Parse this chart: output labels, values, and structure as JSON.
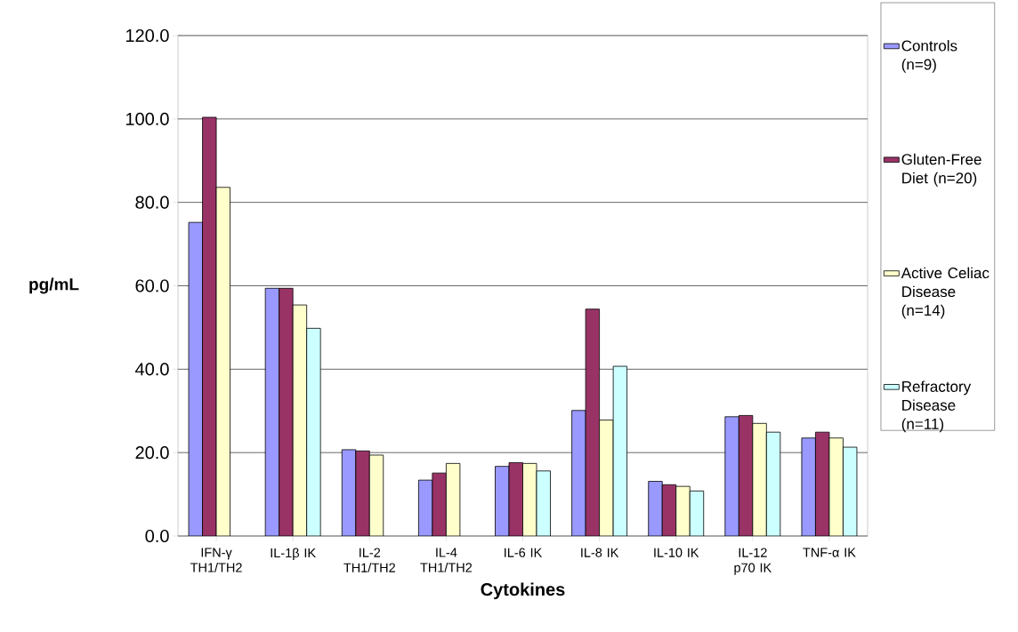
{
  "chart_data": {
    "type": "bar",
    "xlabel": "Cytokines",
    "ylabel": "pg/mL",
    "categories": [
      "IFN-γ TH1/TH2",
      "IL-1β IK",
      "IL-2 TH1/TH2",
      "IL-4 TH1/TH2",
      "IL-6 IK",
      "IL-8 IK",
      "IL-10 IK",
      "IL-12 p70 IK",
      "TNF-α IK"
    ],
    "series": [
      {
        "name": "Controls (n=9)",
        "color": "#9999ff",
        "values": [
          75.2,
          59.4,
          20.7,
          13.4,
          16.7,
          30.1,
          13.1,
          28.6,
          23.5
        ]
      },
      {
        "name": "Gluten-Free Diet (n=20)",
        "color": "#993366",
        "values": [
          100.4,
          59.4,
          20.4,
          15.1,
          17.6,
          54.4,
          12.3,
          28.9,
          24.9
        ]
      },
      {
        "name": "Active Celiac Disease (n=14)",
        "color": "#ffffcc",
        "values": [
          83.6,
          55.4,
          19.4,
          17.4,
          17.4,
          27.8,
          11.9,
          27.0,
          23.5
        ]
      },
      {
        "name": "Refractory Disease (n=11)",
        "color": "#ccffff",
        "values": [
          null,
          49.8,
          null,
          null,
          15.6,
          40.7,
          10.8,
          24.9,
          21.3
        ]
      }
    ],
    "ylim": [
      0,
      120
    ],
    "yticks": [
      {
        "value": 0,
        "label": "0.0"
      },
      {
        "value": 20,
        "label": "20.0"
      },
      {
        "value": 40,
        "label": "40.0"
      },
      {
        "value": 60,
        "label": "60.0"
      },
      {
        "value": 80,
        "label": "80.0"
      },
      {
        "value": 100,
        "label": "100.0"
      },
      {
        "value": 120,
        "label": "120.0"
      }
    ],
    "grid": "y",
    "legend": "right"
  }
}
